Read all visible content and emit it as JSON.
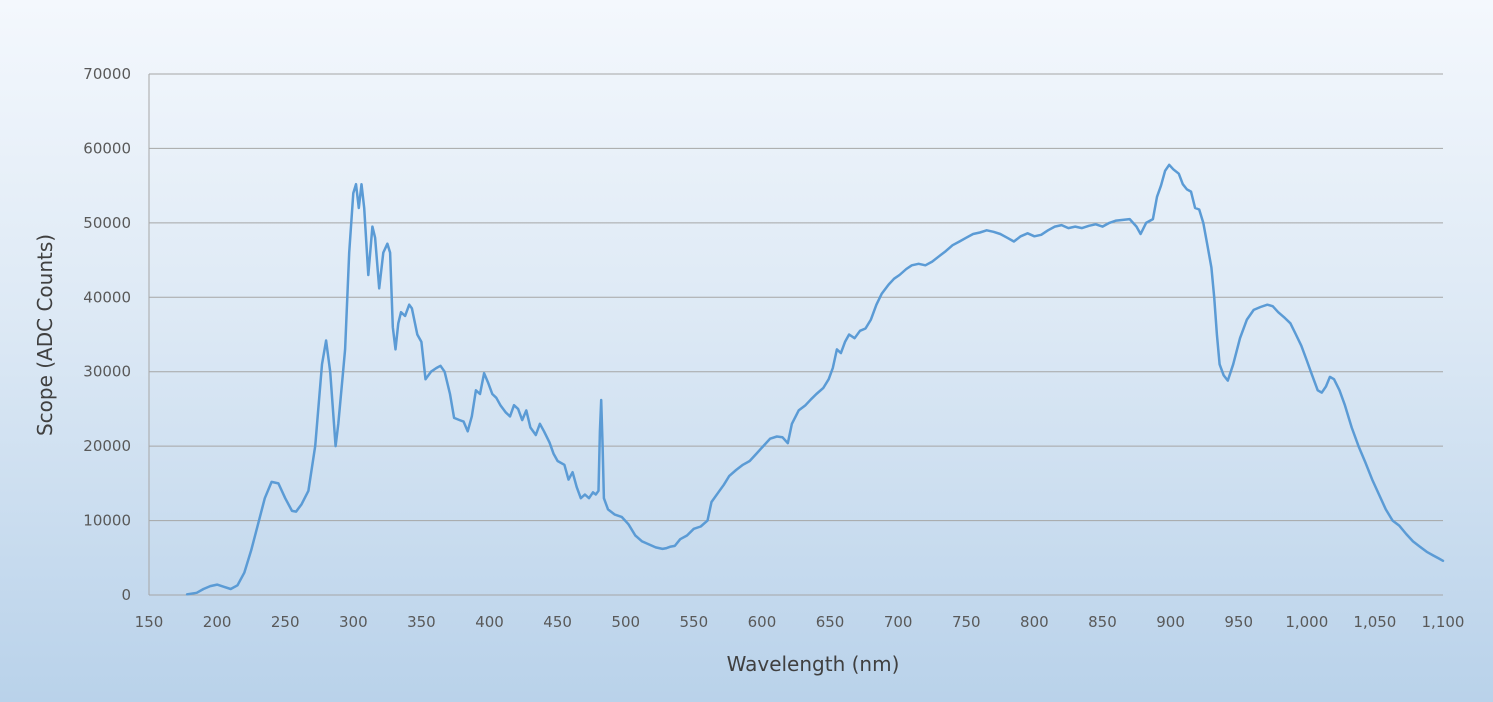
{
  "chart_data": {
    "type": "line",
    "title": "",
    "xlabel": "Wavelength (nm)",
    "ylabel": "Scope (ADC Counts)",
    "xlim": [
      150,
      1100
    ],
    "ylim": [
      0,
      70000
    ],
    "x_ticks": [
      150,
      200,
      250,
      300,
      350,
      400,
      450,
      500,
      550,
      600,
      650,
      700,
      750,
      800,
      850,
      900,
      950,
      1000,
      1050,
      1100
    ],
    "x_tick_labels": [
      "150",
      "200",
      "250",
      "300",
      "350",
      "400",
      "450",
      "500",
      "550",
      "600",
      "650",
      "700",
      "750",
      "800",
      "850",
      "900",
      "950",
      "1,000",
      "1,050",
      "1,100"
    ],
    "y_ticks": [
      0,
      10000,
      20000,
      30000,
      40000,
      50000,
      60000,
      70000
    ],
    "y_tick_labels": [
      "0",
      "10000",
      "20000",
      "30000",
      "40000",
      "50000",
      "60000",
      "70000"
    ],
    "grid": true,
    "legend": "none",
    "series_color": "#5b9bd5",
    "series": [
      {
        "points": [
          [
            178,
            100
          ],
          [
            185,
            300
          ],
          [
            190,
            800
          ],
          [
            195,
            1200
          ],
          [
            200,
            1400
          ],
          [
            205,
            1100
          ],
          [
            210,
            800
          ],
          [
            215,
            1300
          ],
          [
            220,
            3000
          ],
          [
            225,
            6000
          ],
          [
            230,
            9500
          ],
          [
            235,
            13000
          ],
          [
            240,
            15200
          ],
          [
            245,
            15000
          ],
          [
            250,
            13000
          ],
          [
            255,
            11300
          ],
          [
            258,
            11200
          ],
          [
            262,
            12200
          ],
          [
            267,
            14000
          ],
          [
            272,
            20000
          ],
          [
            277,
            31000
          ],
          [
            280,
            34200
          ],
          [
            283,
            30000
          ],
          [
            287,
            20000
          ],
          [
            289,
            23000
          ],
          [
            292,
            29000
          ],
          [
            294,
            33000
          ],
          [
            297,
            46000
          ],
          [
            300,
            54000
          ],
          [
            302,
            55200
          ],
          [
            304,
            52000
          ],
          [
            306,
            55200
          ],
          [
            308,
            52000
          ],
          [
            311,
            43000
          ],
          [
            314,
            49500
          ],
          [
            316,
            48000
          ],
          [
            319,
            41200
          ],
          [
            322,
            46000
          ],
          [
            325,
            47200
          ],
          [
            327,
            46000
          ],
          [
            329,
            36000
          ],
          [
            331,
            33000
          ],
          [
            333,
            36500
          ],
          [
            335,
            38000
          ],
          [
            338,
            37500
          ],
          [
            341,
            39000
          ],
          [
            343,
            38500
          ],
          [
            347,
            35000
          ],
          [
            350,
            34000
          ],
          [
            353,
            29000
          ],
          [
            357,
            30000
          ],
          [
            361,
            30500
          ],
          [
            364,
            30800
          ],
          [
            367,
            30000
          ],
          [
            371,
            27000
          ],
          [
            374,
            23800
          ],
          [
            378,
            23500
          ],
          [
            381,
            23300
          ],
          [
            384,
            22000
          ],
          [
            387,
            24000
          ],
          [
            390,
            27500
          ],
          [
            393,
            27000
          ],
          [
            396,
            29800
          ],
          [
            399,
            28500
          ],
          [
            402,
            27000
          ],
          [
            405,
            26500
          ],
          [
            408,
            25500
          ],
          [
            412,
            24500
          ],
          [
            415,
            24000
          ],
          [
            418,
            25500
          ],
          [
            421,
            25000
          ],
          [
            424,
            23500
          ],
          [
            427,
            24800
          ],
          [
            430,
            22500
          ],
          [
            434,
            21500
          ],
          [
            437,
            23000
          ],
          [
            440,
            22000
          ],
          [
            444,
            20500
          ],
          [
            447,
            19000
          ],
          [
            450,
            18000
          ],
          [
            455,
            17500
          ],
          [
            458,
            15500
          ],
          [
            461,
            16500
          ],
          [
            464,
            14500
          ],
          [
            467,
            13000
          ],
          [
            470,
            13500
          ],
          [
            473,
            13000
          ],
          [
            476,
            13800
          ],
          [
            478,
            13500
          ],
          [
            480,
            14000
          ],
          [
            481,
            22000
          ],
          [
            482,
            26200
          ],
          [
            483,
            20000
          ],
          [
            484,
            13000
          ],
          [
            487,
            11500
          ],
          [
            492,
            10800
          ],
          [
            497,
            10500
          ],
          [
            502,
            9500
          ],
          [
            507,
            8000
          ],
          [
            512,
            7200
          ],
          [
            517,
            6800
          ],
          [
            522,
            6400
          ],
          [
            527,
            6200
          ],
          [
            530,
            6300
          ],
          [
            533,
            6500
          ],
          [
            536,
            6600
          ],
          [
            540,
            7500
          ],
          [
            545,
            8000
          ],
          [
            550,
            8900
          ],
          [
            555,
            9200
          ],
          [
            560,
            10000
          ],
          [
            563,
            12500
          ],
          [
            568,
            13800
          ],
          [
            572,
            14800
          ],
          [
            576,
            16000
          ],
          [
            581,
            16800
          ],
          [
            586,
            17500
          ],
          [
            591,
            18000
          ],
          [
            596,
            19000
          ],
          [
            601,
            20000
          ],
          [
            606,
            21000
          ],
          [
            611,
            21300
          ],
          [
            615,
            21200
          ],
          [
            619,
            20400
          ],
          [
            622,
            23000
          ],
          [
            627,
            24800
          ],
          [
            632,
            25500
          ],
          [
            636,
            26300
          ],
          [
            640,
            27000
          ],
          [
            645,
            27800
          ],
          [
            649,
            29000
          ],
          [
            652,
            30500
          ],
          [
            655,
            33000
          ],
          [
            658,
            32500
          ],
          [
            661,
            34000
          ],
          [
            664,
            35000
          ],
          [
            668,
            34500
          ],
          [
            672,
            35500
          ],
          [
            676,
            35800
          ],
          [
            680,
            37000
          ],
          [
            684,
            39000
          ],
          [
            688,
            40500
          ],
          [
            693,
            41700
          ],
          [
            697,
            42500
          ],
          [
            701,
            43000
          ],
          [
            706,
            43800
          ],
          [
            710,
            44300
          ],
          [
            715,
            44500
          ],
          [
            720,
            44300
          ],
          [
            725,
            44800
          ],
          [
            730,
            45500
          ],
          [
            735,
            46200
          ],
          [
            740,
            47000
          ],
          [
            745,
            47500
          ],
          [
            750,
            48000
          ],
          [
            755,
            48500
          ],
          [
            760,
            48700
          ],
          [
            765,
            49000
          ],
          [
            770,
            48800
          ],
          [
            775,
            48500
          ],
          [
            780,
            48000
          ],
          [
            785,
            47500
          ],
          [
            790,
            48200
          ],
          [
            795,
            48600
          ],
          [
            800,
            48200
          ],
          [
            805,
            48400
          ],
          [
            810,
            49000
          ],
          [
            815,
            49500
          ],
          [
            820,
            49700
          ],
          [
            825,
            49300
          ],
          [
            830,
            49500
          ],
          [
            835,
            49300
          ],
          [
            840,
            49600
          ],
          [
            845,
            49800
          ],
          [
            850,
            49500
          ],
          [
            855,
            50000
          ],
          [
            860,
            50300
          ],
          [
            865,
            50400
          ],
          [
            870,
            50500
          ],
          [
            875,
            49500
          ],
          [
            878,
            48500
          ],
          [
            882,
            50000
          ],
          [
            887,
            50500
          ],
          [
            890,
            53500
          ],
          [
            893,
            55000
          ],
          [
            896,
            57000
          ],
          [
            899,
            57800
          ],
          [
            902,
            57200
          ],
          [
            906,
            56600
          ],
          [
            909,
            55200
          ],
          [
            912,
            54500
          ],
          [
            915,
            54200
          ],
          [
            918,
            52000
          ],
          [
            921,
            51800
          ],
          [
            924,
            50000
          ],
          [
            927,
            47000
          ],
          [
            930,
            44000
          ],
          [
            932,
            40000
          ],
          [
            934,
            35000
          ],
          [
            936,
            31000
          ],
          [
            939,
            29500
          ],
          [
            942,
            28800
          ],
          [
            946,
            31000
          ],
          [
            951,
            34500
          ],
          [
            956,
            37000
          ],
          [
            961,
            38300
          ],
          [
            966,
            38700
          ],
          [
            971,
            39000
          ],
          [
            975,
            38800
          ],
          [
            979,
            38000
          ],
          [
            984,
            37200
          ],
          [
            988,
            36500
          ],
          [
            992,
            35000
          ],
          [
            996,
            33500
          ],
          [
            1000,
            31500
          ],
          [
            1004,
            29500
          ],
          [
            1008,
            27500
          ],
          [
            1011,
            27200
          ],
          [
            1014,
            28000
          ],
          [
            1017,
            29300
          ],
          [
            1020,
            29000
          ],
          [
            1024,
            27500
          ],
          [
            1028,
            25500
          ],
          [
            1033,
            22500
          ],
          [
            1038,
            20000
          ],
          [
            1043,
            17800
          ],
          [
            1048,
            15500
          ],
          [
            1053,
            13500
          ],
          [
            1058,
            11500
          ],
          [
            1063,
            10000
          ],
          [
            1068,
            9300
          ],
          [
            1073,
            8200
          ],
          [
            1078,
            7200
          ],
          [
            1083,
            6500
          ],
          [
            1088,
            5800
          ],
          [
            1093,
            5300
          ],
          [
            1097,
            4900
          ],
          [
            1100,
            4600
          ]
        ]
      }
    ]
  }
}
